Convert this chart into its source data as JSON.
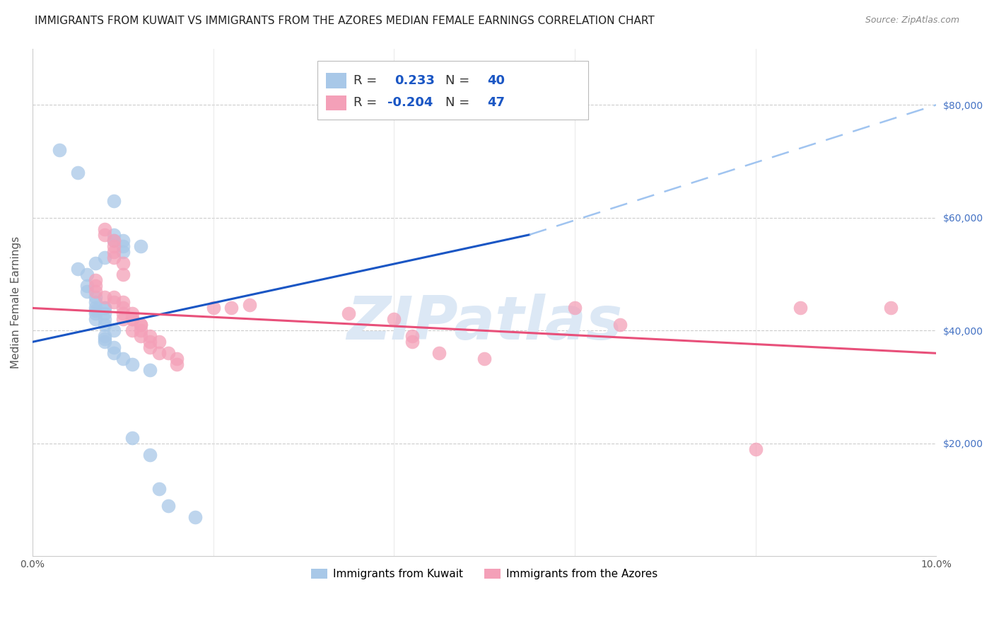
{
  "title": "IMMIGRANTS FROM KUWAIT VS IMMIGRANTS FROM THE AZORES MEDIAN FEMALE EARNINGS CORRELATION CHART",
  "source": "Source: ZipAtlas.com",
  "ylabel": "Median Female Earnings",
  "xlim": [
    0.0,
    0.1
  ],
  "ylim": [
    0,
    90000
  ],
  "ytick_positions": [
    20000,
    40000,
    60000,
    80000
  ],
  "ytick_labels": [
    "$20,000",
    "$40,000",
    "$60,000",
    "$80,000"
  ],
  "xtick_positions": [
    0.0,
    0.02,
    0.04,
    0.06,
    0.08,
    0.1
  ],
  "xtick_labels": [
    "0.0%",
    "",
    "",
    "",
    "",
    "10.0%"
  ],
  "kuwait_color": "#a8c8e8",
  "azores_color": "#f4a0b8",
  "kuwait_line_color": "#1a56c4",
  "azores_line_color": "#e8507a",
  "kuwait_dashed_color": "#a0c4f0",
  "watermark": "ZIPatlas",
  "watermark_color": "#dce8f5",
  "background_color": "#ffffff",
  "title_fontsize": 11,
  "axis_label_fontsize": 11,
  "tick_fontsize": 10,
  "right_tick_color": "#4472c4",
  "kuwait_line": {
    "x0": 0.0,
    "y0": 38000,
    "x1": 0.055,
    "y1": 57000,
    "x1d": 0.055,
    "y1d": 57000,
    "x2d": 0.1,
    "y2d": 80000
  },
  "azores_line": {
    "x0": 0.0,
    "y0": 44000,
    "x1": 0.1,
    "y1": 36000
  },
  "kuwait_data": [
    [
      0.003,
      72000
    ],
    [
      0.005,
      68000
    ],
    [
      0.009,
      63000
    ],
    [
      0.009,
      56000
    ],
    [
      0.009,
      57000
    ],
    [
      0.01,
      55000
    ],
    [
      0.01,
      54000
    ],
    [
      0.01,
      56000
    ],
    [
      0.012,
      55000
    ],
    [
      0.008,
      53000
    ],
    [
      0.007,
      52000
    ],
    [
      0.006,
      50000
    ],
    [
      0.005,
      51000
    ],
    [
      0.006,
      48000
    ],
    [
      0.006,
      47000
    ],
    [
      0.007,
      46000
    ],
    [
      0.007,
      45000
    ],
    [
      0.008,
      44000
    ],
    [
      0.007,
      43000
    ],
    [
      0.007,
      44000
    ],
    [
      0.007,
      43500
    ],
    [
      0.007,
      42000
    ],
    [
      0.008,
      42000
    ],
    [
      0.008,
      43000
    ],
    [
      0.008,
      44000
    ],
    [
      0.008,
      41000
    ],
    [
      0.009,
      40000
    ],
    [
      0.008,
      39000
    ],
    [
      0.008,
      38500
    ],
    [
      0.008,
      38000
    ],
    [
      0.009,
      37000
    ],
    [
      0.009,
      36000
    ],
    [
      0.01,
      35000
    ],
    [
      0.011,
      34000
    ],
    [
      0.013,
      33000
    ],
    [
      0.011,
      21000
    ],
    [
      0.013,
      18000
    ],
    [
      0.014,
      12000
    ],
    [
      0.015,
      9000
    ],
    [
      0.018,
      7000
    ]
  ],
  "azores_data": [
    [
      0.008,
      58000
    ],
    [
      0.008,
      57000
    ],
    [
      0.009,
      56000
    ],
    [
      0.009,
      55000
    ],
    [
      0.009,
      54000
    ],
    [
      0.009,
      53000
    ],
    [
      0.01,
      52000
    ],
    [
      0.01,
      50000
    ],
    [
      0.007,
      49000
    ],
    [
      0.007,
      48000
    ],
    [
      0.007,
      47000
    ],
    [
      0.008,
      46000
    ],
    [
      0.009,
      46000
    ],
    [
      0.009,
      45000
    ],
    [
      0.01,
      45000
    ],
    [
      0.01,
      44000
    ],
    [
      0.01,
      43000
    ],
    [
      0.011,
      43000
    ],
    [
      0.011,
      42000
    ],
    [
      0.01,
      42000
    ],
    [
      0.011,
      42000
    ],
    [
      0.012,
      41000
    ],
    [
      0.012,
      41000
    ],
    [
      0.012,
      40000
    ],
    [
      0.011,
      40000
    ],
    [
      0.012,
      39000
    ],
    [
      0.013,
      39000
    ],
    [
      0.013,
      38000
    ],
    [
      0.014,
      38000
    ],
    [
      0.013,
      37000
    ],
    [
      0.014,
      36000
    ],
    [
      0.015,
      36000
    ],
    [
      0.016,
      35000
    ],
    [
      0.016,
      34000
    ],
    [
      0.02,
      44000
    ],
    [
      0.022,
      44000
    ],
    [
      0.024,
      44500
    ],
    [
      0.035,
      43000
    ],
    [
      0.04,
      42000
    ],
    [
      0.042,
      39000
    ],
    [
      0.042,
      38000
    ],
    [
      0.045,
      36000
    ],
    [
      0.05,
      35000
    ],
    [
      0.06,
      44000
    ],
    [
      0.065,
      41000
    ],
    [
      0.08,
      19000
    ],
    [
      0.085,
      44000
    ],
    [
      0.095,
      44000
    ]
  ]
}
